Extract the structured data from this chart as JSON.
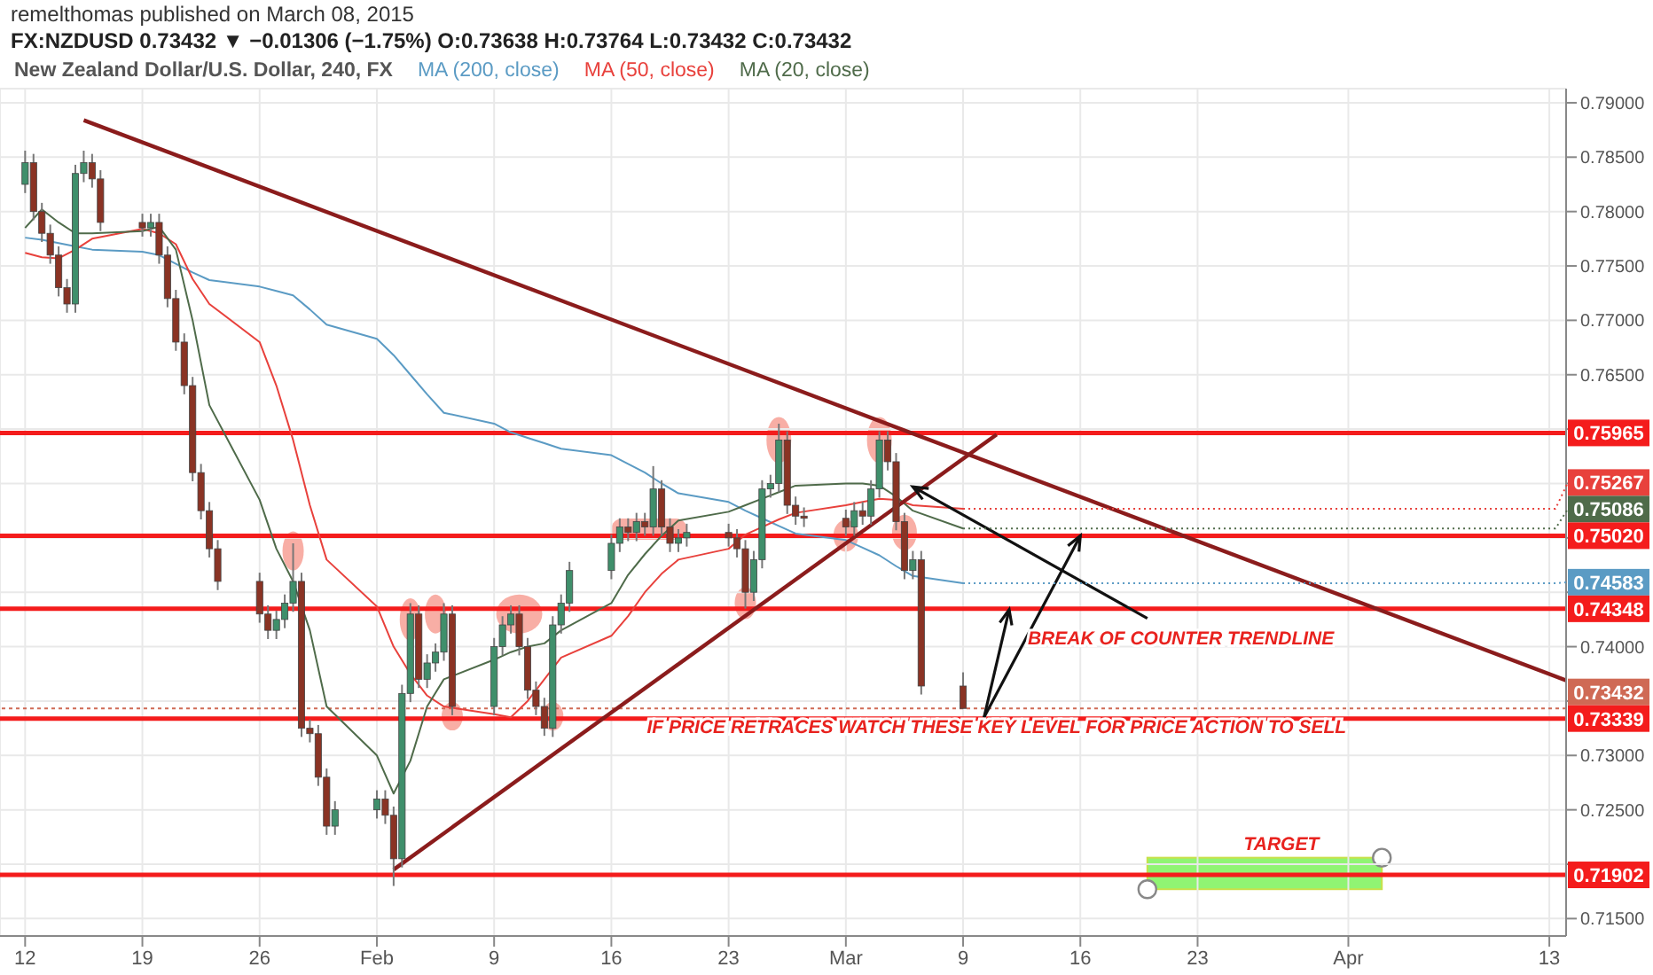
{
  "chart_data": {
    "type": "candlestick",
    "title": "New Zealand Dollar/U.S. Dollar, 240, FX",
    "subtitle": "FX:NZDUSD 0.73432 ▼ −0.01306 (−1.75%) O:0.73638 H:0.73764 L:0.73432 C:0.73432",
    "x": [
      "2015-01-12T00:00",
      "2015-01-12T12:00",
      "2015-01-13T00:00",
      "2015-01-13T12:00",
      "2015-01-14T00:00",
      "2015-01-14T12:00",
      "2015-01-15T00:00",
      "2015-01-15T12:00",
      "2015-01-16T00:00",
      "2015-01-16T12:00",
      "2015-01-19T00:00",
      "2015-01-19T12:00",
      "2015-01-20T00:00",
      "2015-01-20T12:00",
      "2015-01-21T00:00",
      "2015-01-21T12:00",
      "2015-01-22T00:00",
      "2015-01-22T12:00",
      "2015-01-23T00:00",
      "2015-01-23T12:00",
      "2015-01-26T00:00",
      "2015-01-26T12:00",
      "2015-01-27T00:00",
      "2015-01-27T12:00",
      "2015-01-28T00:00",
      "2015-01-28T12:00",
      "2015-01-29T00:00",
      "2015-01-29T12:00",
      "2015-01-30T00:00",
      "2015-01-30T12:00",
      "2015-02-02T00:00",
      "2015-02-02T12:00",
      "2015-02-03T00:00",
      "2015-02-03T12:00",
      "2015-02-04T00:00",
      "2015-02-04T12:00",
      "2015-02-05T00:00",
      "2015-02-05T12:00",
      "2015-02-06T00:00",
      "2015-02-06T12:00",
      "2015-02-09T00:00",
      "2015-02-09T12:00",
      "2015-02-10T00:00",
      "2015-02-10T12:00",
      "2015-02-11T00:00",
      "2015-02-11T12:00",
      "2015-02-12T00:00",
      "2015-02-12T12:00",
      "2015-02-13T00:00",
      "2015-02-13T12:00",
      "2015-02-16T00:00",
      "2015-02-16T12:00",
      "2015-02-17T00:00",
      "2015-02-17T12:00",
      "2015-02-18T00:00",
      "2015-02-18T12:00",
      "2015-02-19T00:00",
      "2015-02-19T12:00",
      "2015-02-20T00:00",
      "2015-02-20T12:00",
      "2015-02-23T00:00",
      "2015-02-23T12:00",
      "2015-02-24T00:00",
      "2015-02-24T12:00",
      "2015-02-25T00:00",
      "2015-02-25T12:00",
      "2015-02-26T00:00",
      "2015-02-26T12:00",
      "2015-02-27T00:00",
      "2015-02-27T12:00",
      "2015-03-02T00:00",
      "2015-03-02T12:00",
      "2015-03-03T00:00",
      "2015-03-03T12:00",
      "2015-03-04T00:00",
      "2015-03-04T12:00",
      "2015-03-05T00:00",
      "2015-03-05T12:00",
      "2015-03-06T00:00",
      "2015-03-06T12:00",
      "2015-03-09T00:00"
    ],
    "ohlc": [
      [
        0.7825,
        0.7856,
        0.7817,
        0.7845
      ],
      [
        0.7845,
        0.7853,
        0.7792,
        0.78
      ],
      [
        0.78,
        0.7808,
        0.7772,
        0.778
      ],
      [
        0.778,
        0.7788,
        0.7752,
        0.776
      ],
      [
        0.776,
        0.7768,
        0.7722,
        0.773
      ],
      [
        0.773,
        0.7738,
        0.7707,
        0.7715
      ],
      [
        0.7715,
        0.7843,
        0.7707,
        0.7835
      ],
      [
        0.7835,
        0.7856,
        0.7827,
        0.7845
      ],
      [
        0.7845,
        0.7853,
        0.7822,
        0.783
      ],
      [
        0.783,
        0.7838,
        0.7782,
        0.779
      ],
      [
        0.779,
        0.7798,
        0.7777,
        0.7785
      ],
      [
        0.7785,
        0.7798,
        0.7777,
        0.779
      ],
      [
        0.779,
        0.7798,
        0.7752,
        0.776
      ],
      [
        0.776,
        0.7768,
        0.7712,
        0.772
      ],
      [
        0.772,
        0.7728,
        0.7672,
        0.768
      ],
      [
        0.768,
        0.7688,
        0.7632,
        0.764
      ],
      [
        0.764,
        0.7648,
        0.7552,
        0.756
      ],
      [
        0.756,
        0.7568,
        0.7517,
        0.7525
      ],
      [
        0.7525,
        0.7533,
        0.7482,
        0.749
      ],
      [
        0.749,
        0.7498,
        0.7452,
        0.746
      ],
      [
        0.746,
        0.7468,
        0.7422,
        0.743
      ],
      [
        0.743,
        0.7438,
        0.7407,
        0.7415
      ],
      [
        0.7415,
        0.7433,
        0.7407,
        0.7425
      ],
      [
        0.7425,
        0.7448,
        0.7417,
        0.744
      ],
      [
        0.744,
        0.7495,
        0.7432,
        0.746
      ],
      [
        0.746,
        0.7468,
        0.7317,
        0.7325
      ],
      [
        0.7325,
        0.7333,
        0.7312,
        0.732
      ],
      [
        0.732,
        0.7328,
        0.7272,
        0.728
      ],
      [
        0.728,
        0.7288,
        0.7227,
        0.7235
      ],
      [
        0.7235,
        0.7258,
        0.7227,
        0.725
      ],
      [
        0.725,
        0.7268,
        0.7242,
        0.726
      ],
      [
        0.726,
        0.7268,
        0.7237,
        0.7245
      ],
      [
        0.7245,
        0.7253,
        0.718,
        0.7205
      ],
      [
        0.7205,
        0.7365,
        0.7197,
        0.7357
      ],
      [
        0.7357,
        0.744,
        0.7349,
        0.743
      ],
      [
        0.743,
        0.7438,
        0.7362,
        0.737
      ],
      [
        0.737,
        0.7393,
        0.7362,
        0.7385
      ],
      [
        0.7385,
        0.7403,
        0.7377,
        0.7395
      ],
      [
        0.7395,
        0.744,
        0.7387,
        0.743
      ],
      [
        0.743,
        0.7438,
        0.7337,
        0.7345
      ],
      [
        0.7345,
        0.7408,
        0.7337,
        0.74
      ],
      [
        0.74,
        0.7428,
        0.7392,
        0.742
      ],
      [
        0.742,
        0.7438,
        0.7412,
        0.743
      ],
      [
        0.743,
        0.7438,
        0.7392,
        0.74
      ],
      [
        0.74,
        0.7408,
        0.7352,
        0.736
      ],
      [
        0.736,
        0.7368,
        0.7337,
        0.7345
      ],
      [
        0.7345,
        0.7353,
        0.7318,
        0.7325
      ],
      [
        0.7325,
        0.7428,
        0.7317,
        0.742
      ],
      [
        0.742,
        0.7448,
        0.7412,
        0.744
      ],
      [
        0.744,
        0.7478,
        0.7432,
        0.747
      ],
      [
        0.747,
        0.7503,
        0.7462,
        0.7495
      ],
      [
        0.7495,
        0.7518,
        0.7487,
        0.751
      ],
      [
        0.751,
        0.7518,
        0.7497,
        0.7505
      ],
      [
        0.7505,
        0.7523,
        0.7497,
        0.7515
      ],
      [
        0.7515,
        0.7523,
        0.7502,
        0.751
      ],
      [
        0.751,
        0.7566,
        0.7502,
        0.7545
      ],
      [
        0.7545,
        0.7553,
        0.7502,
        0.751
      ],
      [
        0.751,
        0.7518,
        0.7487,
        0.7495
      ],
      [
        0.7495,
        0.7508,
        0.7487,
        0.75
      ],
      [
        0.75,
        0.7513,
        0.7492,
        0.7505
      ],
      [
        0.7505,
        0.7513,
        0.7492,
        0.75
      ],
      [
        0.75,
        0.7508,
        0.7482,
        0.749
      ],
      [
        0.749,
        0.7498,
        0.7435,
        0.745
      ],
      [
        0.745,
        0.7488,
        0.7442,
        0.748
      ],
      [
        0.748,
        0.7553,
        0.7472,
        0.7545
      ],
      [
        0.7545,
        0.7558,
        0.7537,
        0.755
      ],
      [
        0.755,
        0.7605,
        0.7542,
        0.759
      ],
      [
        0.759,
        0.7598,
        0.7522,
        0.753
      ],
      [
        0.753,
        0.7538,
        0.7512,
        0.752
      ],
      [
        0.752,
        0.7528,
        0.751,
        0.7518
      ],
      [
        0.7518,
        0.7526,
        0.7502,
        0.751
      ],
      [
        0.751,
        0.7533,
        0.7502,
        0.7525
      ],
      [
        0.7525,
        0.7533,
        0.7512,
        0.752
      ],
      [
        0.752,
        0.7553,
        0.7512,
        0.7545
      ],
      [
        0.7545,
        0.7598,
        0.7537,
        0.759
      ],
      [
        0.759,
        0.7598,
        0.7562,
        0.757
      ],
      [
        0.757,
        0.7578,
        0.7507,
        0.7515
      ],
      [
        0.7515,
        0.7523,
        0.7462,
        0.747
      ],
      [
        0.747,
        0.7488,
        0.7462,
        0.748
      ],
      [
        0.748,
        0.7488,
        0.7356,
        0.73638
      ],
      [
        0.73638,
        0.73764,
        0.73432,
        0.73432
      ]
    ],
    "series": [
      {
        "type": "line",
        "name": "MA (200, close)",
        "color": "#5b9bc4",
        "x": [
          "2015-01-12",
          "2015-01-13",
          "2015-01-14",
          "2015-01-15",
          "2015-01-16",
          "2015-01-19",
          "2015-01-20",
          "2015-01-21",
          "2015-01-22",
          "2015-01-23",
          "2015-01-26",
          "2015-01-27",
          "2015-01-28",
          "2015-01-29",
          "2015-01-30",
          "2015-02-02",
          "2015-02-03",
          "2015-02-04",
          "2015-02-05",
          "2015-02-06",
          "2015-02-09",
          "2015-02-10",
          "2015-02-11",
          "2015-02-12",
          "2015-02-13",
          "2015-02-16",
          "2015-02-17",
          "2015-02-18",
          "2015-02-19",
          "2015-02-20",
          "2015-02-23",
          "2015-02-24",
          "2015-02-25",
          "2015-02-26",
          "2015-02-27",
          "2015-03-02",
          "2015-03-03",
          "2015-03-04",
          "2015-03-05",
          "2015-03-06",
          "2015-03-09"
        ],
        "values": [
          0.7776,
          0.7774,
          0.7771,
          0.7768,
          0.7765,
          0.7763,
          0.776,
          0.7752,
          0.7744,
          0.7737,
          0.7731,
          0.7727,
          0.7723,
          0.771,
          0.7696,
          0.7683,
          0.7668,
          0.765,
          0.7632,
          0.7615,
          0.7605,
          0.7597,
          0.7592,
          0.7587,
          0.7582,
          0.7576,
          0.7568,
          0.756,
          0.755,
          0.7541,
          0.7533,
          0.7525,
          0.7518,
          0.7511,
          0.7504,
          0.7498,
          0.7491,
          0.7484,
          0.7474,
          0.7465,
          0.74583
        ],
        "value_labels": [
          null,
          null,
          null,
          null,
          null,
          null,
          null,
          null,
          null,
          null,
          null,
          null,
          null,
          null,
          null,
          null,
          null,
          null,
          null,
          null,
          null,
          null,
          null,
          null,
          null,
          null,
          null,
          null,
          null,
          null,
          null,
          null,
          null,
          null,
          null,
          null,
          null,
          null,
          null,
          null,
          "0.74583"
        ]
      },
      {
        "type": "line",
        "name": "MA (50, close)",
        "color": "#e8413c",
        "x": [
          "2015-01-12",
          "2015-01-13",
          "2015-01-14",
          "2015-01-15",
          "2015-01-16",
          "2015-01-19",
          "2015-01-20",
          "2015-01-21",
          "2015-01-22",
          "2015-01-23",
          "2015-01-26",
          "2015-01-27",
          "2015-01-28",
          "2015-01-29",
          "2015-01-30",
          "2015-02-02",
          "2015-02-03",
          "2015-02-04",
          "2015-02-05",
          "2015-02-06",
          "2015-02-09",
          "2015-02-10",
          "2015-02-11",
          "2015-02-12",
          "2015-02-13",
          "2015-02-16",
          "2015-02-17",
          "2015-02-18",
          "2015-02-19",
          "2015-02-20",
          "2015-02-23",
          "2015-02-24",
          "2015-02-25",
          "2015-02-26",
          "2015-02-27",
          "2015-03-02",
          "2015-03-03",
          "2015-03-04",
          "2015-03-05",
          "2015-03-06",
          "2015-03-09"
        ],
        "values": [
          0.7762,
          0.7758,
          0.7757,
          0.7765,
          0.7775,
          0.7784,
          0.778,
          0.777,
          0.7738,
          0.7715,
          0.768,
          0.764,
          0.759,
          0.753,
          0.748,
          0.7437,
          0.74,
          0.7375,
          0.7355,
          0.7345,
          0.7338,
          0.7335,
          0.735,
          0.737,
          0.739,
          0.741,
          0.7428,
          0.745,
          0.7467,
          0.748,
          0.749,
          0.7503,
          0.751,
          0.7517,
          0.7523,
          0.753,
          0.7533,
          0.7536,
          0.7535,
          0.753,
          0.75267
        ],
        "value_labels": [
          null,
          null,
          null,
          null,
          null,
          null,
          null,
          null,
          null,
          null,
          null,
          null,
          null,
          null,
          null,
          null,
          null,
          null,
          null,
          null,
          null,
          null,
          null,
          null,
          null,
          null,
          null,
          null,
          null,
          null,
          null,
          null,
          null,
          null,
          null,
          null,
          null,
          null,
          null,
          null,
          "0.75267"
        ]
      },
      {
        "type": "line",
        "name": "MA (20, close)",
        "color": "#4f6b4a",
        "x": [
          "2015-01-12",
          "2015-01-13",
          "2015-01-14",
          "2015-01-15",
          "2015-01-16",
          "2015-01-19",
          "2015-01-20",
          "2015-01-21",
          "2015-01-22",
          "2015-01-23",
          "2015-01-26",
          "2015-01-27",
          "2015-01-28",
          "2015-01-29",
          "2015-01-30",
          "2015-02-02",
          "2015-02-03",
          "2015-02-04",
          "2015-02-05",
          "2015-02-06",
          "2015-02-09",
          "2015-02-10",
          "2015-02-11",
          "2015-02-12",
          "2015-02-13",
          "2015-02-16",
          "2015-02-17",
          "2015-02-18",
          "2015-02-19",
          "2015-02-20",
          "2015-02-23",
          "2015-02-24",
          "2015-02-25",
          "2015-02-26",
          "2015-02-27",
          "2015-03-02",
          "2015-03-03",
          "2015-03-04",
          "2015-03-05",
          "2015-03-06",
          "2015-03-09"
        ],
        "values": [
          0.7785,
          0.7802,
          0.779,
          0.778,
          0.778,
          0.7782,
          0.7786,
          0.7765,
          0.77,
          0.7622,
          0.7535,
          0.749,
          0.746,
          0.7415,
          0.7345,
          0.73,
          0.7265,
          0.7295,
          0.7345,
          0.737,
          0.7388,
          0.7395,
          0.74,
          0.7403,
          0.7415,
          0.744,
          0.7466,
          0.7485,
          0.7502,
          0.7516,
          0.7524,
          0.753,
          0.7536,
          0.7542,
          0.7548,
          0.755,
          0.755,
          0.7548,
          0.7538,
          0.7525,
          0.75086
        ],
        "value_labels": [
          null,
          null,
          null,
          null,
          null,
          null,
          null,
          null,
          null,
          null,
          null,
          null,
          null,
          null,
          null,
          null,
          null,
          null,
          null,
          null,
          null,
          null,
          null,
          null,
          null,
          null,
          null,
          null,
          null,
          null,
          null,
          null,
          null,
          null,
          null,
          null,
          null,
          null,
          null,
          null,
          "0.75086"
        ]
      },
      {
        "type": "line",
        "color": "#8b1c1c",
        "x": [
          "2015-01-15T12:00",
          "2015-04-14"
        ],
        "values": [
          0.7884,
          0.7369
        ]
      },
      {
        "type": "line",
        "color": "#8b1c1c",
        "x": [
          "2015-02-03T00:00",
          "2015-03-11T00:00"
        ],
        "values": [
          0.7195,
          0.7595
        ]
      }
    ],
    "ref_lines": [
      {
        "axis": "y",
        "value": 0.75965,
        "label": "0.75965",
        "color": "#f41c1c"
      },
      {
        "axis": "y",
        "value": 0.7502,
        "label": "0.75020",
        "color": "#f41c1c"
      },
      {
        "axis": "y",
        "value": 0.74348,
        "label": "0.74348",
        "color": "#f41c1c"
      },
      {
        "axis": "y",
        "value": 0.73432,
        "label": "0.73432",
        "color": "#cf6a55",
        "line_style": "dotted"
      },
      {
        "axis": "y",
        "value": 0.73339,
        "label": "0.73339",
        "color": "#f41c1c"
      },
      {
        "axis": "y",
        "value": 0.71902,
        "label": "0.71902",
        "color": "#f41c1c"
      }
    ],
    "annotations": [
      "remelthomas published on March 08, 2015",
      {
        "text": "BREAK OF COUNTER TRENDLINE",
        "x": "2015-03-06T00:00",
        "y": 0.7547
      },
      {
        "text": "IF PRICE RETRACES WATCH THESE KEY LEVEL FOR PRICE ACTION TO SELL",
        "x": "2015-03-10T06:00",
        "y": 0.7335
      },
      "TARGET"
    ],
    "xlim": [
      "2015-01-10T12:00",
      "2015-04-14"
    ],
    "xticks": [
      {
        "value": "2015-01-12",
        "label": "12"
      },
      {
        "value": "2015-01-19",
        "label": "19"
      },
      {
        "value": "2015-01-26",
        "label": "26"
      },
      {
        "value": "2015-02-02",
        "label": "Feb"
      },
      {
        "value": "2015-02-09",
        "label": "9"
      },
      {
        "value": "2015-02-16",
        "label": "16"
      },
      {
        "value": "2015-02-23",
        "label": "23"
      },
      {
        "value": "2015-03-02",
        "label": "Mar"
      },
      {
        "value": "2015-03-09",
        "label": "9"
      },
      {
        "value": "2015-03-16",
        "label": "16"
      },
      {
        "value": "2015-03-23",
        "label": "23"
      },
      {
        "value": "2015-04-01",
        "label": "Apr"
      },
      {
        "value": "2015-04-13",
        "label": "13"
      }
    ],
    "ylim": [
      0.7134,
      0.7913
    ],
    "yticks": [
      {
        "value": 0.715,
        "label": "0.71500"
      },
      {
        "value": 0.72,
        "label": null
      },
      {
        "value": 0.725,
        "label": "0.72500"
      },
      {
        "value": 0.73,
        "label": "0.73000"
      },
      {
        "value": 0.735,
        "label": null
      },
      {
        "value": 0.74,
        "label": "0.74000"
      },
      {
        "value": 0.745,
        "label": null
      },
      {
        "value": 0.75,
        "label": null
      },
      {
        "value": 0.755,
        "label": null
      },
      {
        "value": 0.76,
        "label": null
      },
      {
        "value": 0.765,
        "label": "0.76500"
      },
      {
        "value": 0.77,
        "label": "0.77000"
      },
      {
        "value": 0.775,
        "label": "0.77500"
      },
      {
        "value": 0.78,
        "label": "0.78000"
      },
      {
        "value": 0.785,
        "label": "0.78500"
      },
      {
        "value": 0.79,
        "label": "0.79000"
      }
    ],
    "grid": true,
    "legend": "top"
  }
}
